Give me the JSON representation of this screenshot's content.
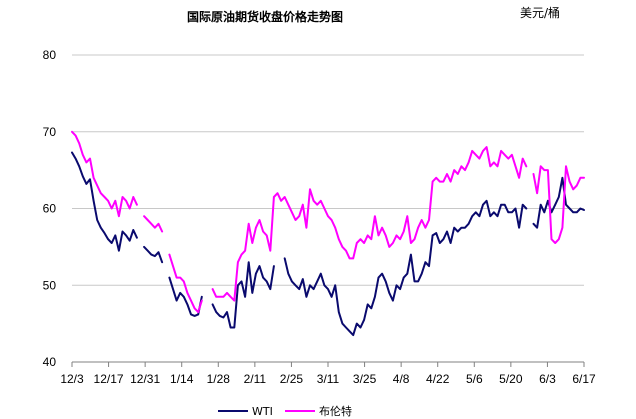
{
  "chart_data": {
    "type": "line",
    "title": "国际原油期货收盘价格走势图",
    "unit": "美元/桶",
    "ylim": [
      40,
      80
    ],
    "yticks": [
      "40",
      "50",
      "60",
      "70",
      "80"
    ],
    "xticks": [
      "12/3",
      "12/17",
      "12/31",
      "1/14",
      "1/28",
      "2/11",
      "2/25",
      "3/11",
      "3/25",
      "4/8",
      "4/22",
      "5/6",
      "5/20",
      "6/3",
      "6/17"
    ],
    "grid": "horizontal",
    "legend_position": "bottom",
    "colors": {
      "WTI": "#0a0a6e",
      "布伦特": "#ff00ff"
    },
    "series": [
      {
        "name": "WTI",
        "points": [
          [
            0,
            67.3
          ],
          [
            1,
            66.5
          ],
          [
            2,
            65.5
          ],
          [
            3,
            64.2
          ],
          [
            4,
            63.2
          ],
          [
            5,
            63.8
          ],
          [
            6,
            61.0
          ],
          [
            7,
            58.5
          ],
          [
            8,
            57.5
          ],
          [
            9,
            56.8
          ],
          [
            10,
            56.0
          ],
          [
            11,
            55.5
          ],
          [
            12,
            56.5
          ],
          [
            13,
            54.5
          ],
          [
            14,
            57.0
          ],
          [
            15,
            56.5
          ],
          [
            16,
            55.8
          ],
          [
            17,
            57.2
          ],
          [
            18,
            56.2
          ],
          [
            19,
            null
          ],
          [
            20,
            55.0
          ],
          [
            21,
            54.5
          ],
          [
            22,
            54.0
          ],
          [
            23,
            53.8
          ],
          [
            24,
            54.3
          ],
          [
            25,
            53.0
          ],
          [
            26,
            null
          ],
          [
            27,
            51.0
          ],
          [
            28,
            49.5
          ],
          [
            29,
            48.0
          ],
          [
            30,
            49.0
          ],
          [
            31,
            48.5
          ],
          [
            32,
            47.5
          ],
          [
            33,
            46.2
          ],
          [
            34,
            46.0
          ],
          [
            35,
            46.2
          ],
          [
            36,
            48.5
          ],
          [
            37,
            null
          ],
          [
            38,
            null
          ],
          [
            39,
            47.5
          ],
          [
            40,
            46.5
          ],
          [
            41,
            46.0
          ],
          [
            42,
            45.8
          ],
          [
            43,
            46.5
          ],
          [
            44,
            44.5
          ],
          [
            45,
            44.5
          ],
          [
            46,
            50.0
          ],
          [
            47,
            50.5
          ],
          [
            48,
            48.5
          ],
          [
            49,
            53.0
          ],
          [
            50,
            49.0
          ],
          [
            51,
            51.5
          ],
          [
            52,
            52.5
          ],
          [
            53,
            51.0
          ],
          [
            54,
            50.5
          ],
          [
            55,
            49.5
          ],
          [
            56,
            52.5
          ],
          [
            57,
            null
          ],
          [
            58,
            null
          ],
          [
            59,
            53.5
          ],
          [
            60,
            51.5
          ],
          [
            61,
            50.5
          ],
          [
            62,
            50.0
          ],
          [
            63,
            49.5
          ],
          [
            64,
            50.8
          ],
          [
            65,
            48.5
          ],
          [
            66,
            50.0
          ],
          [
            67,
            49.5
          ],
          [
            68,
            50.5
          ],
          [
            69,
            51.5
          ],
          [
            70,
            50.0
          ],
          [
            71,
            49.5
          ],
          [
            72,
            48.5
          ],
          [
            73,
            50.0
          ],
          [
            74,
            46.5
          ],
          [
            75,
            45.0
          ],
          [
            76,
            44.5
          ],
          [
            77,
            44.0
          ],
          [
            78,
            43.5
          ],
          [
            79,
            45.0
          ],
          [
            80,
            44.5
          ],
          [
            81,
            45.5
          ],
          [
            82,
            47.5
          ],
          [
            83,
            47.0
          ],
          [
            84,
            48.5
          ],
          [
            85,
            51.0
          ],
          [
            86,
            51.5
          ],
          [
            87,
            50.5
          ],
          [
            88,
            49.0
          ],
          [
            89,
            48.0
          ],
          [
            90,
            50.0
          ],
          [
            91,
            49.5
          ],
          [
            92,
            51.0
          ],
          [
            93,
            51.5
          ],
          [
            94,
            54.0
          ],
          [
            95,
            50.5
          ],
          [
            96,
            50.5
          ],
          [
            97,
            51.5
          ],
          [
            98,
            53.0
          ],
          [
            99,
            52.5
          ],
          [
            100,
            56.5
          ],
          [
            101,
            56.8
          ],
          [
            102,
            55.5
          ],
          [
            103,
            56.0
          ],
          [
            104,
            57.0
          ],
          [
            105,
            55.5
          ],
          [
            106,
            57.5
          ],
          [
            107,
            57.0
          ],
          [
            108,
            57.5
          ],
          [
            109,
            57.5
          ],
          [
            110,
            58.0
          ],
          [
            111,
            59.0
          ],
          [
            112,
            59.5
          ],
          [
            113,
            59.0
          ],
          [
            114,
            60.5
          ],
          [
            115,
            61.0
          ],
          [
            116,
            59.0
          ],
          [
            117,
            59.5
          ],
          [
            118,
            59.0
          ],
          [
            119,
            60.5
          ],
          [
            120,
            60.5
          ],
          [
            121,
            59.5
          ],
          [
            122,
            59.5
          ],
          [
            123,
            60.0
          ],
          [
            124,
            57.5
          ],
          [
            125,
            60.5
          ],
          [
            126,
            60.0
          ],
          [
            127,
            null
          ],
          [
            128,
            58.0
          ],
          [
            129,
            57.5
          ],
          [
            130,
            60.5
          ],
          [
            131,
            59.5
          ],
          [
            132,
            61.0
          ],
          [
            133,
            59.5
          ],
          [
            134,
            60.5
          ],
          [
            135,
            61.5
          ],
          [
            136,
            64.0
          ],
          [
            137,
            60.5
          ],
          [
            138,
            60.0
          ],
          [
            139,
            59.5
          ],
          [
            140,
            59.5
          ],
          [
            141,
            60.0
          ],
          [
            142,
            59.8
          ]
        ]
      },
      {
        "name": "布伦特",
        "points": [
          [
            0,
            70.0
          ],
          [
            1,
            69.5
          ],
          [
            2,
            68.5
          ],
          [
            3,
            67.0
          ],
          [
            4,
            66.0
          ],
          [
            5,
            66.5
          ],
          [
            6,
            64.0
          ],
          [
            7,
            63.0
          ],
          [
            8,
            62.0
          ],
          [
            9,
            61.5
          ],
          [
            10,
            61.0
          ],
          [
            11,
            60.0
          ],
          [
            12,
            61.0
          ],
          [
            13,
            59.0
          ],
          [
            14,
            61.5
          ],
          [
            15,
            61.0
          ],
          [
            16,
            60.0
          ],
          [
            17,
            61.5
          ],
          [
            18,
            60.5
          ],
          [
            19,
            null
          ],
          [
            20,
            59.0
          ],
          [
            21,
            58.5
          ],
          [
            22,
            58.0
          ],
          [
            23,
            57.5
          ],
          [
            24,
            58.0
          ],
          [
            25,
            57.0
          ],
          [
            26,
            null
          ],
          [
            27,
            54.0
          ],
          [
            28,
            52.5
          ],
          [
            29,
            51.0
          ],
          [
            30,
            51.0
          ],
          [
            31,
            50.5
          ],
          [
            32,
            49.0
          ],
          [
            33,
            48.0
          ],
          [
            34,
            47.0
          ],
          [
            35,
            46.5
          ],
          [
            36,
            48.0
          ],
          [
            37,
            null
          ],
          [
            38,
            null
          ],
          [
            39,
            49.5
          ],
          [
            40,
            48.5
          ],
          [
            41,
            48.5
          ],
          [
            42,
            48.5
          ],
          [
            43,
            49.0
          ],
          [
            44,
            48.5
          ],
          [
            45,
            48.0
          ],
          [
            46,
            53.0
          ],
          [
            47,
            54.0
          ],
          [
            48,
            54.5
          ],
          [
            49,
            58.0
          ],
          [
            50,
            55.5
          ],
          [
            51,
            57.5
          ],
          [
            52,
            58.5
          ],
          [
            53,
            57.0
          ],
          [
            54,
            56.5
          ],
          [
            55,
            54.5
          ],
          [
            56,
            61.5
          ],
          [
            57,
            62.0
          ],
          [
            58,
            61.0
          ],
          [
            59,
            61.5
          ],
          [
            60,
            60.5
          ],
          [
            61,
            59.5
          ],
          [
            62,
            58.5
          ],
          [
            63,
            59.0
          ],
          [
            64,
            60.5
          ],
          [
            65,
            57.5
          ],
          [
            66,
            62.5
          ],
          [
            67,
            61.0
          ],
          [
            68,
            60.5
          ],
          [
            69,
            61.0
          ],
          [
            70,
            60.0
          ],
          [
            71,
            59.0
          ],
          [
            72,
            58.5
          ],
          [
            73,
            57.5
          ],
          [
            74,
            56.0
          ],
          [
            75,
            55.0
          ],
          [
            76,
            54.5
          ],
          [
            77,
            53.5
          ],
          [
            78,
            53.5
          ],
          [
            79,
            55.5
          ],
          [
            80,
            56.0
          ],
          [
            81,
            55.5
          ],
          [
            82,
            56.5
          ],
          [
            83,
            56.0
          ],
          [
            84,
            59.0
          ],
          [
            85,
            56.5
          ],
          [
            86,
            57.5
          ],
          [
            87,
            56.5
          ],
          [
            88,
            55.0
          ],
          [
            89,
            55.5
          ],
          [
            90,
            56.5
          ],
          [
            91,
            56.0
          ],
          [
            92,
            57.0
          ],
          [
            93,
            59.0
          ],
          [
            94,
            55.5
          ],
          [
            95,
            56.0
          ],
          [
            96,
            57.5
          ],
          [
            97,
            58.5
          ],
          [
            98,
            57.5
          ],
          [
            99,
            58.5
          ],
          [
            100,
            63.5
          ],
          [
            101,
            64.0
          ],
          [
            102,
            63.5
          ],
          [
            103,
            63.5
          ],
          [
            104,
            64.5
          ],
          [
            105,
            63.5
          ],
          [
            106,
            65.0
          ],
          [
            107,
            64.5
          ],
          [
            108,
            65.5
          ],
          [
            109,
            65.0
          ],
          [
            110,
            66.0
          ],
          [
            111,
            67.5
          ],
          [
            112,
            67.0
          ],
          [
            113,
            66.5
          ],
          [
            114,
            67.5
          ],
          [
            115,
            68.0
          ],
          [
            116,
            65.5
          ],
          [
            117,
            66.0
          ],
          [
            118,
            65.5
          ],
          [
            119,
            67.5
          ],
          [
            120,
            67.0
          ],
          [
            121,
            66.5
          ],
          [
            122,
            67.0
          ],
          [
            123,
            65.5
          ],
          [
            124,
            64.0
          ],
          [
            125,
            66.5
          ],
          [
            126,
            65.5
          ],
          [
            127,
            null
          ],
          [
            128,
            64.5
          ],
          [
            129,
            62.0
          ],
          [
            130,
            65.5
          ],
          [
            131,
            65.0
          ],
          [
            132,
            65.0
          ],
          [
            133,
            56.0
          ],
          [
            134,
            55.5
          ],
          [
            135,
            56.0
          ],
          [
            136,
            57.5
          ],
          [
            137,
            65.5
          ],
          [
            138,
            63.5
          ],
          [
            139,
            62.5
          ],
          [
            140,
            63.0
          ],
          [
            141,
            64.0
          ],
          [
            142,
            64.0
          ]
        ]
      }
    ]
  }
}
